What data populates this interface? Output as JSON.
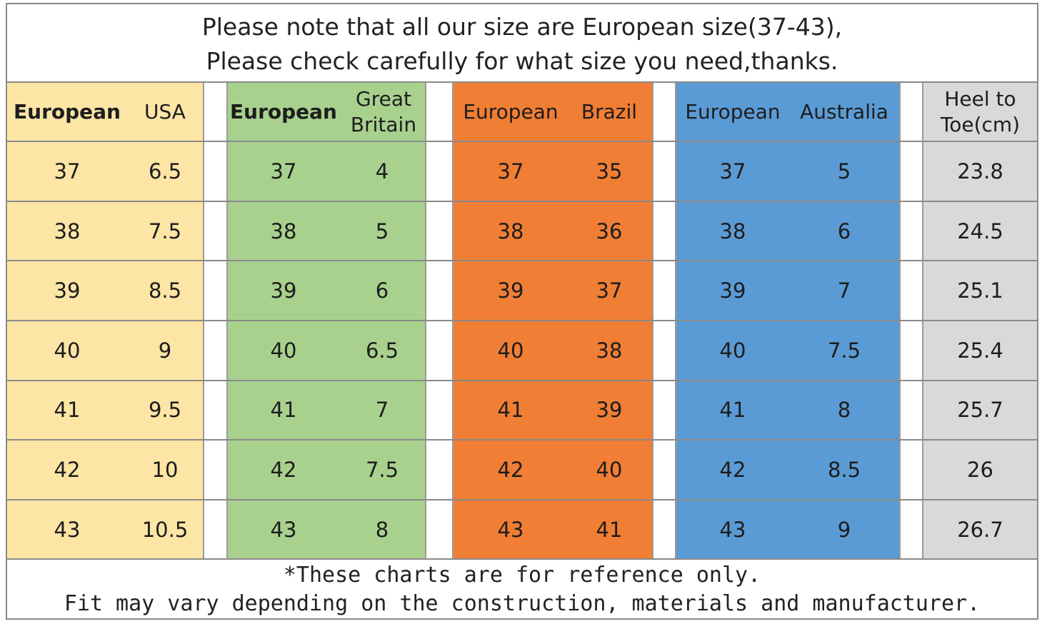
{
  "notice": {
    "line1": "Please note that all our size are European size(37-43),",
    "line2": "Please check carefully for what size you need,thanks."
  },
  "headers": {
    "yellow": [
      "European",
      "USA"
    ],
    "green": [
      "European",
      "Great Britain"
    ],
    "orange": [
      "European",
      "Brazil"
    ],
    "blue": [
      "European",
      "Australia"
    ],
    "gray": "Heel to Toe(cm)"
  },
  "rows": [
    {
      "eu": "37",
      "usa": "6.5",
      "gb": "4",
      "brazil": "35",
      "au": "5",
      "cm": "23.8"
    },
    {
      "eu": "38",
      "usa": "7.5",
      "gb": "5",
      "brazil": "36",
      "au": "6",
      "cm": "24.5"
    },
    {
      "eu": "39",
      "usa": "8.5",
      "gb": "6",
      "brazil": "37",
      "au": "7",
      "cm": "25.1"
    },
    {
      "eu": "40",
      "usa": "9",
      "gb": "6.5",
      "brazil": "38",
      "au": "7.5",
      "cm": "25.4"
    },
    {
      "eu": "41",
      "usa": "9.5",
      "gb": "7",
      "brazil": "39",
      "au": "8",
      "cm": "25.7"
    },
    {
      "eu": "42",
      "usa": "10",
      "gb": "7.5",
      "brazil": "40",
      "au": "8.5",
      "cm": "26"
    },
    {
      "eu": "43",
      "usa": "10.5",
      "gb": "8",
      "brazil": "41",
      "au": "9",
      "cm": "26.7"
    }
  ],
  "footer": {
    "line1": "*These charts are for reference only.",
    "line2": "Fit may vary depending on the construction, materials and manufacturer."
  },
  "colors": {
    "yellow": "#fce5a5",
    "green": "#a9d18e",
    "orange": "#f07e34",
    "blue": "#5b9bd5",
    "gray": "#d9d9d9"
  }
}
